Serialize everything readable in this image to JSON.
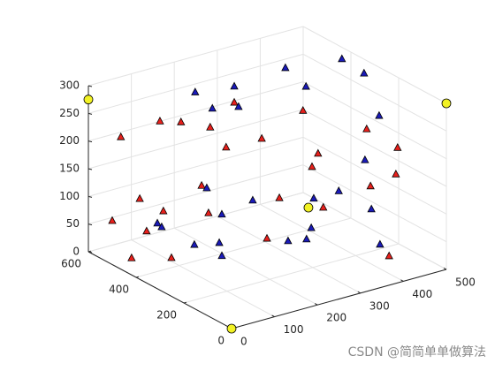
{
  "chart_data": {
    "type": "scatter3d",
    "xlim": [
      0,
      500
    ],
    "ylim": [
      0,
      600
    ],
    "zlim": [
      0,
      300
    ],
    "xticks": [
      0,
      100,
      200,
      300,
      400,
      500
    ],
    "yticks": [
      0,
      200,
      400,
      600
    ],
    "zticks": [
      0,
      50,
      100,
      150,
      200,
      250,
      300
    ],
    "grid": true,
    "series": [
      {
        "color": "#e8201c",
        "marker": "^",
        "x": [
          20,
          111,
          160,
          284,
          228,
          265,
          348,
          444,
          370,
          442,
          479,
          465,
          438,
          379,
          208,
          64,
          119,
          224,
          0,
          80,
          389,
          269,
          249,
          45,
          110,
          450
        ],
        "y": [
          500,
          500,
          500,
          500,
          500,
          500,
          500,
          500,
          100,
          100,
          500,
          500,
          100,
          100,
          500,
          500,
          500,
          500,
          500,
          500,
          500,
          100,
          300,
          500,
          450,
          150
        ],
        "z": [
          226,
          235,
          223,
          232,
          199,
          155,
          153,
          183,
          258,
          209,
          98,
          77,
          162,
          153,
          98,
          105,
          71,
          45,
          79,
          43,
          37,
          138,
          40,
          2,
          0,
          0
        ]
      },
      {
        "color": "#1a1ab8",
        "marker": "^",
        "x": [
          193,
          284,
          233,
          294,
          403,
          451,
          479,
          475,
          399,
          366,
          305,
          469,
          381,
          220,
          327,
          255,
          105,
          115,
          241,
          230,
          187,
          138,
          80,
          144,
          401
        ],
        "y": [
          500,
          500,
          500,
          500,
          500,
          500,
          400,
          300,
          100,
          100,
          100,
          500,
          100,
          500,
          500,
          500,
          500,
          500,
          100,
          100,
          100,
          300,
          300,
          300,
          100
        ],
        "z": [
          270,
          261,
          232,
          222,
          269,
          225,
          292,
          290,
          276,
          203,
          160,
          19,
          111,
          91,
          46,
          36,
          52,
          43,
          107,
          89,
          95,
          56,
          65,
          31,
          43
        ]
      },
      {
        "color": "#f2f224",
        "marker": "o",
        "x": [
          0,
          500,
          0,
          465
        ],
        "y": [
          600,
          0,
          0,
          515
        ],
        "z": [
          275,
          300,
          0,
          0
        ]
      }
    ],
    "watermark": "CSDN @简简单单做算法"
  }
}
